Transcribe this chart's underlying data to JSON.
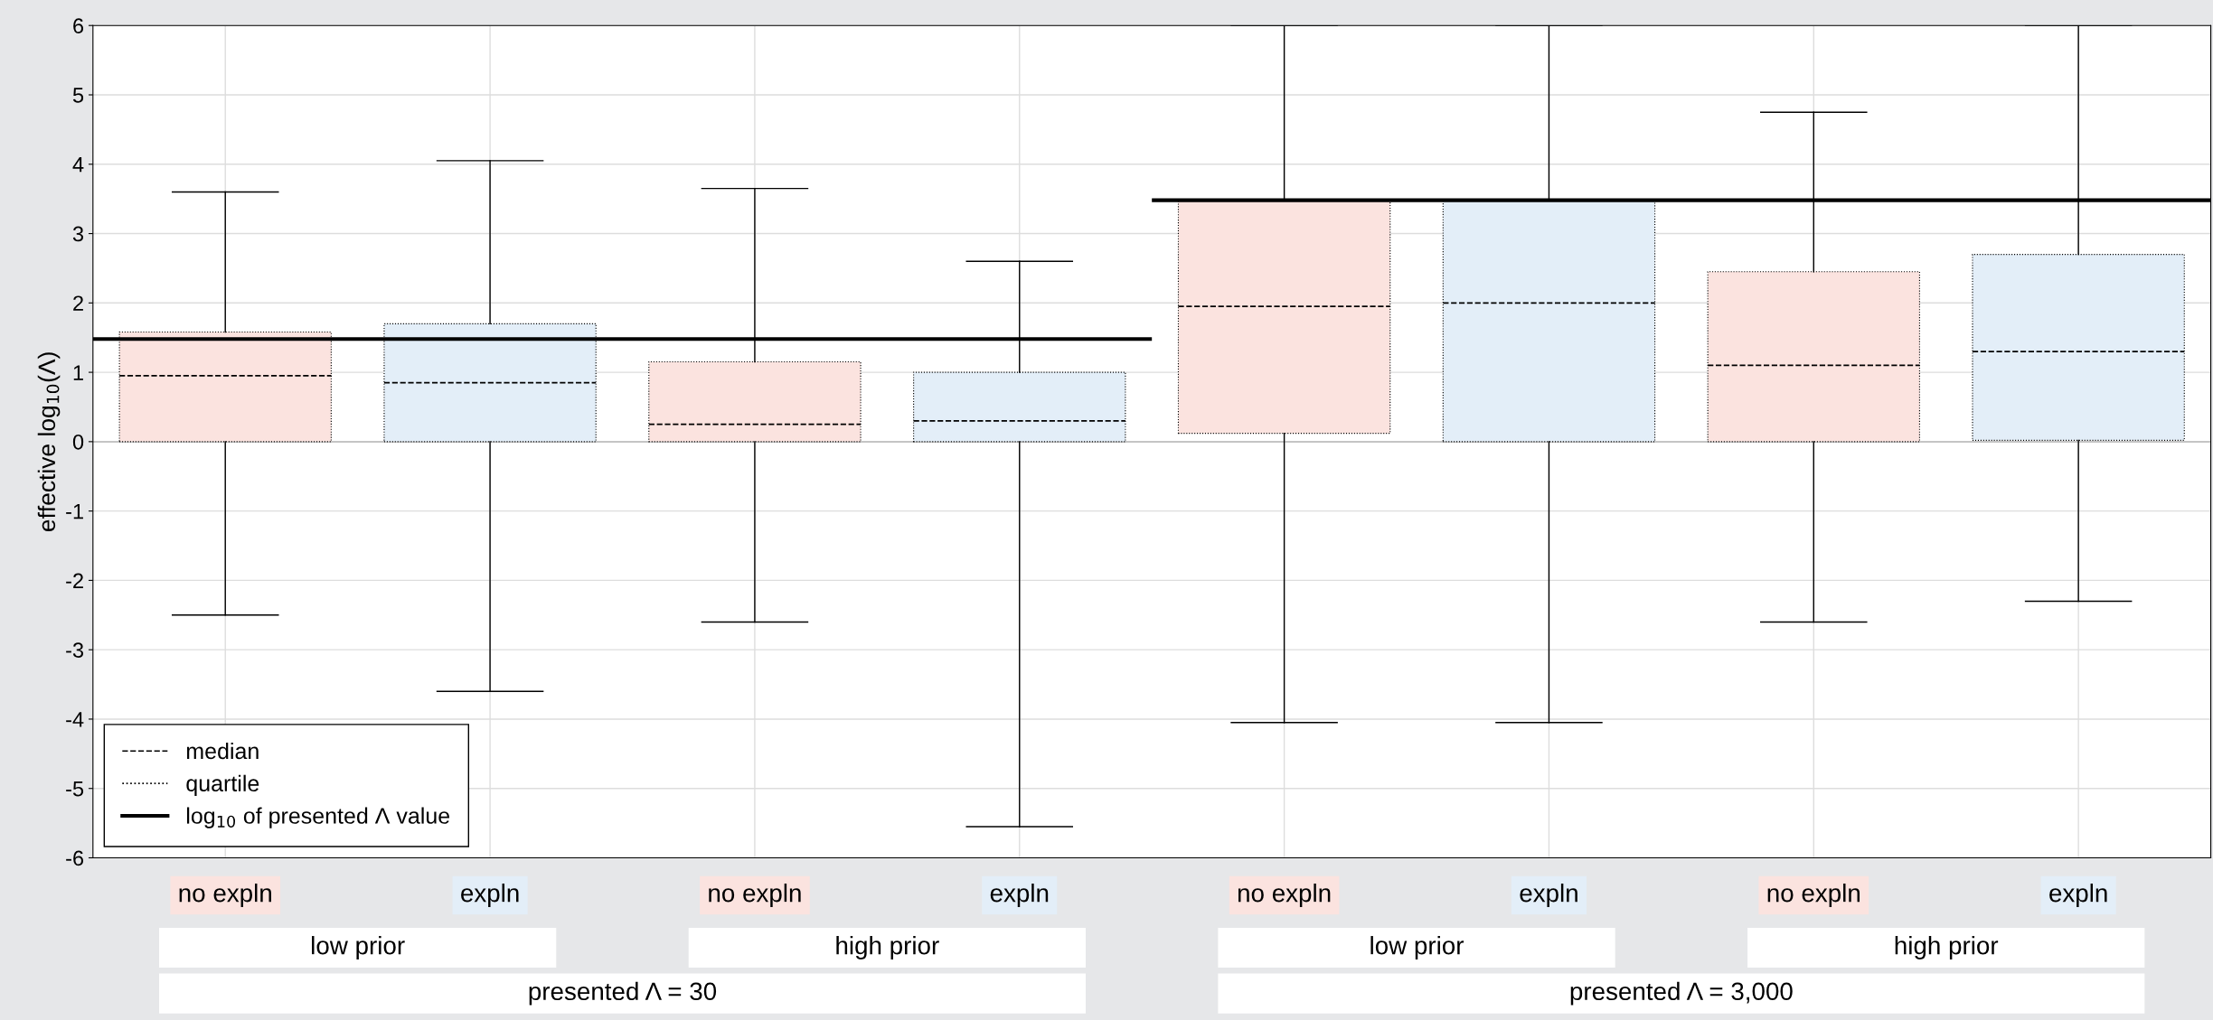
{
  "chart_data": {
    "type": "box",
    "ylabel": "effective log$_{10}$(Λ)",
    "categories": [
      "no expln",
      "expln",
      "no expln",
      "expln",
      "no expln",
      "expln",
      "no expln",
      "expln"
    ],
    "colors": [
      "#fbe3df",
      "#e3eef8",
      "#fbe3df",
      "#e3eef8",
      "#fbe3df",
      "#e3eef8",
      "#fbe3df",
      "#e3eef8"
    ],
    "boxes": [
      {
        "low": -2.5,
        "q1": 0.0,
        "median": 0.95,
        "q3": 1.58,
        "high": 3.6
      },
      {
        "low": -3.6,
        "q1": 0.0,
        "median": 0.85,
        "q3": 1.7,
        "high": 4.05
      },
      {
        "low": -2.6,
        "q1": 0.0,
        "median": 0.25,
        "q3": 1.15,
        "high": 3.65
      },
      {
        "low": -5.55,
        "q1": 0.0,
        "median": 0.3,
        "q3": 1.0,
        "high": 2.6
      },
      {
        "low": -4.05,
        "q1": 0.12,
        "median": 1.95,
        "q3": 3.48,
        "high": 6.0
      },
      {
        "low": -4.05,
        "q1": 0.0,
        "median": 2.0,
        "q3": 3.48,
        "high": 6.0
      },
      {
        "low": -2.6,
        "q1": 0.0,
        "median": 1.1,
        "q3": 2.45,
        "high": 4.75
      },
      {
        "low": -2.3,
        "q1": 0.02,
        "median": 1.3,
        "q3": 2.7,
        "high": 6.0
      }
    ],
    "ylim": [
      -6,
      6
    ],
    "yticks": [
      -6,
      -5,
      -4,
      -3,
      -2,
      -1,
      0,
      1,
      2,
      3,
      4,
      5,
      6
    ],
    "ref_lines": [
      {
        "axis": "y",
        "value": 1.48,
        "label": "log$_{10}$ of presented Λ value",
        "color": "#000000"
      },
      {
        "axis": "y",
        "value": 3.48,
        "color": "#000000"
      }
    ],
    "annotations": [
      "median",
      "quartile",
      "low prior",
      "high prior",
      "low prior",
      "high prior",
      "presented Λ = 30",
      "presented Λ = 3,000"
    ],
    "grid": true,
    "legend": "bottom left"
  }
}
